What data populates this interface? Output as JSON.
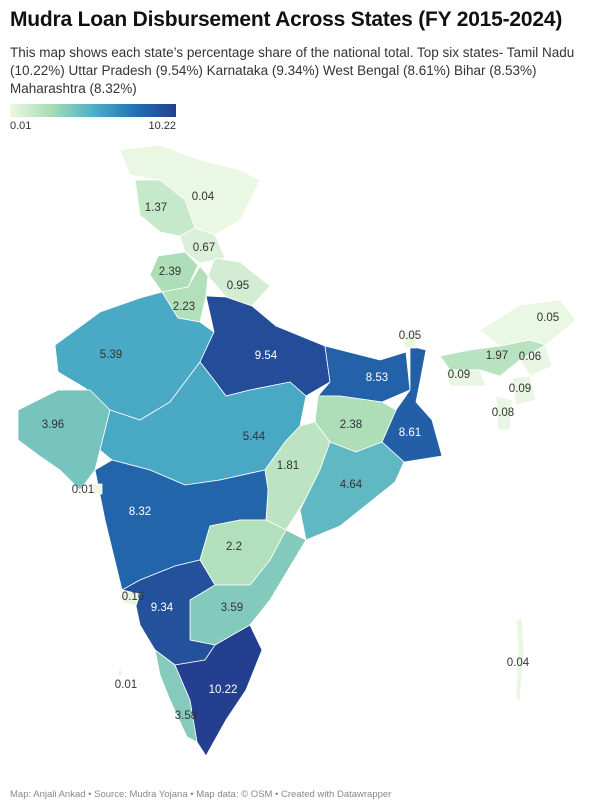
{
  "title": "Mudra Loan Disbursement Across States (FY 2015-2024)",
  "description": "This map shows each state’s percentage share of the national total. Top six states- Tamil Nadu (10.22%) Uttar Pradesh (9.54%) Karnataka (9.34%) West Bengal (8.61%) Bihar (8.53%) Maharashtra (8.32%)",
  "legend": {
    "min": "0.01",
    "max": "10.22",
    "min_value": 0.01,
    "max_value": 10.22,
    "colors": [
      "#ebf7e4",
      "#a8dcb5",
      "#4fb0c6",
      "#2272b5",
      "#243f8f"
    ]
  },
  "regions": [
    {
      "label": "0.04",
      "value": 0.04
    },
    {
      "label": "1.37",
      "value": 1.37
    },
    {
      "label": "0.67",
      "value": 0.67
    },
    {
      "label": "2.39",
      "value": 2.39
    },
    {
      "label": "0.95",
      "value": 0.95
    },
    {
      "label": "2.23",
      "value": 2.23
    },
    {
      "label": "5.39",
      "value": 5.39
    },
    {
      "label": "9.54",
      "value": 9.54
    },
    {
      "label": "8.53",
      "value": 8.53
    },
    {
      "label": "8.61",
      "value": 8.61
    },
    {
      "label": "0.05",
      "value": 0.05
    },
    {
      "label": "3.96",
      "value": 3.96
    },
    {
      "label": "5.44",
      "value": 5.44
    },
    {
      "label": "2.38",
      "value": 2.38
    },
    {
      "label": "1.81",
      "value": 1.81
    },
    {
      "label": "4.64",
      "value": 4.64
    },
    {
      "label": "8.32",
      "value": 8.32
    },
    {
      "label": "0.01",
      "value": 0.01
    },
    {
      "label": "2.2",
      "value": 2.2
    },
    {
      "label": "3.59",
      "value": 3.59
    },
    {
      "label": "0.16",
      "value": 0.16
    },
    {
      "label": "9.34",
      "value": 9.34
    },
    {
      "label": "3.58",
      "value": 3.58
    },
    {
      "label": "10.22",
      "value": 10.22
    },
    {
      "label": "0.01",
      "value": 0.01
    },
    {
      "label": "0.04",
      "value": 0.04
    },
    {
      "label": "1.97",
      "value": 1.97
    },
    {
      "label": "0.05",
      "value": 0.05
    },
    {
      "label": "0.06",
      "value": 0.06
    },
    {
      "label": "0.09",
      "value": 0.09
    },
    {
      "label": "0.09",
      "value": 0.09
    },
    {
      "label": "0.08",
      "value": 0.08
    }
  ],
  "footer": "Map: Anjali Ankad • Source: Mudra Yojana • Map data: © OSM  • Created with Datawrapper"
}
